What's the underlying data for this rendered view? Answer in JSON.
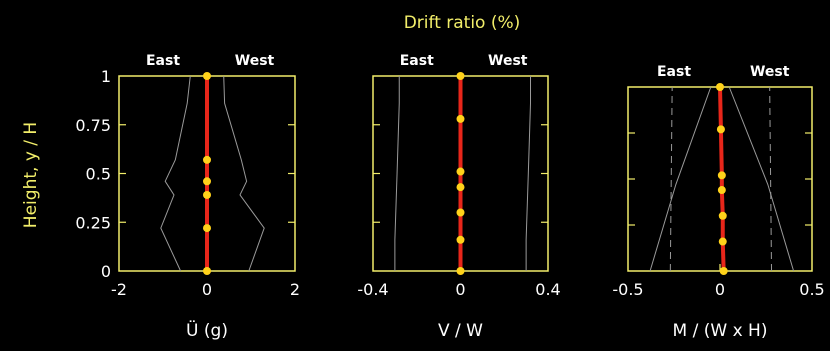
{
  "header": {
    "title": "Drift ratio (%)"
  },
  "y_axis_label": "Height, y / H",
  "colors": {
    "background": "#000000",
    "axis": "#f2ee6a",
    "profile": "#e8261a",
    "marker": "#ffd21a",
    "envelope": "#9a9a9a"
  },
  "chart_data": [
    {
      "type": "line",
      "xlabel": "Ü (g)",
      "xlim": [
        -2,
        2
      ],
      "xticks": [
        "-2",
        "0",
        "2"
      ],
      "ylim": [
        0,
        1
      ],
      "yticks": [
        "0",
        "0.25",
        "0.5",
        "0.75",
        "1"
      ],
      "side_labels": {
        "left": "East",
        "right": "West"
      },
      "series": [
        {
          "style": "profile",
          "x": [
            0,
            0,
            0,
            0,
            0,
            0
          ],
          "y": [
            0,
            0.22,
            0.39,
            0.46,
            0.57,
            1.0
          ]
        },
        {
          "style": "envelope-solid",
          "x": [
            -0.6,
            -1.05,
            -0.75,
            -0.95,
            -0.72,
            -0.45,
            -0.38
          ],
          "y": [
            0,
            0.22,
            0.39,
            0.46,
            0.57,
            0.86,
            1.0
          ]
        },
        {
          "style": "envelope-solid",
          "x": [
            0.95,
            1.3,
            0.75,
            0.9,
            0.78,
            0.4,
            0.38
          ],
          "y": [
            0,
            0.22,
            0.39,
            0.46,
            0.57,
            0.86,
            1.0
          ]
        }
      ]
    },
    {
      "type": "line",
      "xlabel": "V / W",
      "xlim": [
        -0.4,
        0.4
      ],
      "xticks": [
        "-0.4",
        "0",
        "0.4"
      ],
      "ylim": [
        0,
        1
      ],
      "yticks": [],
      "side_labels": {
        "left": "East",
        "right": "West"
      },
      "series": [
        {
          "style": "profile",
          "x": [
            0,
            0,
            0,
            0,
            0,
            0,
            0
          ],
          "y": [
            0,
            0.16,
            0.3,
            0.43,
            0.51,
            0.78,
            1.0
          ]
        },
        {
          "style": "envelope-solid",
          "x": [
            -0.3,
            -0.3,
            -0.29,
            -0.28,
            -0.28
          ],
          "y": [
            0,
            0.16,
            0.5,
            0.86,
            1.0
          ]
        },
        {
          "style": "envelope-solid",
          "x": [
            0.3,
            0.3,
            0.31,
            0.32,
            0.32
          ],
          "y": [
            0,
            0.16,
            0.5,
            0.86,
            1.0
          ]
        }
      ]
    },
    {
      "type": "line",
      "xlabel": "M / (W x H)",
      "xlim": [
        -0.5,
        0.5
      ],
      "xticks": [
        "-0.5",
        "0",
        "0.5"
      ],
      "ylim": [
        0,
        1
      ],
      "yticks": [],
      "side_labels": {
        "left": "East",
        "right": "West"
      },
      "series": [
        {
          "style": "profile",
          "x": [
            0.02,
            0.015,
            0.015,
            0.01,
            0.01,
            0.005,
            0.0
          ],
          "y": [
            0,
            0.16,
            0.3,
            0.44,
            0.52,
            0.77,
            1.0
          ]
        },
        {
          "style": "envelope-solid",
          "x": [
            -0.38,
            -0.24,
            -0.05
          ],
          "y": [
            0,
            0.47,
            1.0
          ]
        },
        {
          "style": "envelope-solid",
          "x": [
            0.4,
            0.26,
            0.05
          ],
          "y": [
            0,
            0.47,
            1.0
          ]
        },
        {
          "style": "envelope-dashed",
          "x": [
            -0.27,
            -0.26
          ],
          "y": [
            0,
            1.0
          ]
        },
        {
          "style": "envelope-dashed",
          "x": [
            0.28,
            0.27
          ],
          "y": [
            0,
            1.0
          ]
        }
      ]
    }
  ]
}
